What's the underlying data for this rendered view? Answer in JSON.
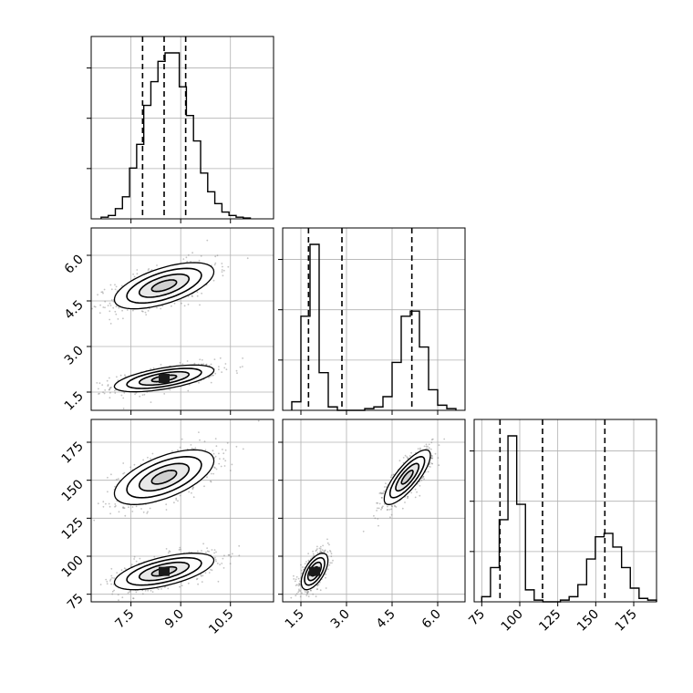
{
  "chart_data": {
    "type": "corner",
    "parameters": [
      {
        "ticks": [
          7.5,
          9.0,
          10.5
        ],
        "tick_labels": [
          "7.5",
          "9.0",
          "10.5"
        ],
        "range": [
          6.3,
          11.8
        ],
        "quantiles": [
          7.85,
          8.5,
          9.15
        ],
        "hist": {
          "edges": [
            6.6,
            11.1
          ],
          "counts": [
            0.01,
            0.02,
            0.06,
            0.13,
            0.3,
            0.44,
            0.67,
            0.81,
            0.93,
            0.98,
            0.98,
            0.78,
            0.61,
            0.46,
            0.27,
            0.16,
            0.09,
            0.04,
            0.02,
            0.01,
            0.005
          ]
        }
      },
      {
        "ticks": [
          1.5,
          3.0,
          4.5,
          6.0
        ],
        "tick_labels": [
          "1.5",
          "3.0",
          "4.5",
          "6.0"
        ],
        "range": [
          0.9,
          6.9
        ],
        "quantiles": [
          1.75,
          2.85,
          5.15
        ],
        "hist": {
          "edges": [
            1.2,
            6.6
          ],
          "counts": [
            0.05,
            0.55,
            0.97,
            0.22,
            0.02,
            0.0,
            0.0,
            0.0,
            0.01,
            0.02,
            0.08,
            0.28,
            0.55,
            0.58,
            0.37,
            0.12,
            0.03,
            0.01
          ]
        }
      },
      {
        "ticks": [
          75,
          100,
          125,
          150,
          175
        ],
        "tick_labels": [
          "75",
          "100",
          "125",
          "150",
          "175"
        ],
        "range": [
          70,
          190
        ],
        "quantiles": [
          87,
          115,
          156
        ],
        "hist": {
          "edges": [
            75,
            190
          ],
          "counts": [
            0.03,
            0.2,
            0.48,
            0.97,
            0.57,
            0.07,
            0.01,
            0.0,
            0.0,
            0.01,
            0.03,
            0.1,
            0.25,
            0.38,
            0.4,
            0.32,
            0.2,
            0.08,
            0.02,
            0.01
          ]
        }
      }
    ],
    "components": [
      {
        "weight": 0.5,
        "mean": [
          8.5,
          1.95,
          90
        ],
        "sd": [
          0.75,
          0.22,
          6
        ],
        "corr": {
          "0-1": 0.6,
          "0-2": 0.6,
          "1-2": 0.6
        }
      },
      {
        "weight": 0.5,
        "mean": [
          8.5,
          5.0,
          152
        ],
        "sd": [
          0.75,
          0.38,
          9
        ],
        "corr": {
          "0-1": 0.6,
          "0-2": 0.6,
          "1-2": 0.8
        }
      }
    ],
    "contour_levels_sigma": [
      0.5,
      1.0,
      1.5,
      2.0
    ],
    "grid": true,
    "title": "",
    "xlabel": "",
    "ylabel": ""
  }
}
